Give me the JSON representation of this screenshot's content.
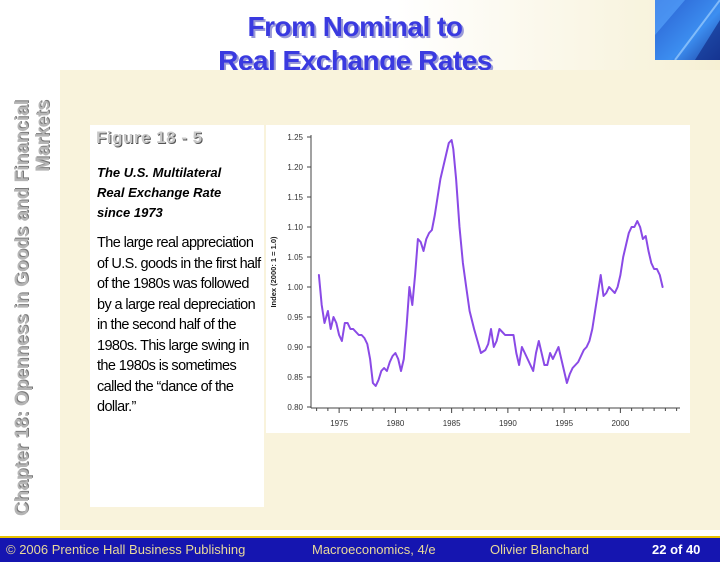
{
  "slide": {
    "title_line1": "From Nominal to",
    "title_line2": "Real Exchange Rates",
    "side_title": "Chapter 18: Openness in Goods and Financial Markets"
  },
  "figure": {
    "label": "Figure 18 - 5",
    "subtitle_lines": [
      "The U.S. Multilateral",
      "Real Exchange Rate",
      "since 1973"
    ],
    "description": "The large real appreciation of U.S. goods in the first half of the 1980s was followed by a large real depreciation in the second half of the 1980s.  This large swing in the 1980s is sometimes called the “dance of the dollar.”"
  },
  "footer": {
    "copyright": "© 2006 Prentice Hall Business Publishing",
    "book": "Macroeconomics, 4/e",
    "author": "Olivier Blanchard",
    "page": "22 of 40"
  },
  "colors": {
    "title": "#3a3ae0",
    "line": "#8a4ae6",
    "footer_bg": "#1515b0"
  },
  "chart_data": {
    "type": "line",
    "title": "",
    "xlabel": "",
    "ylabel": "Index (2000: 1 = 1.0)",
    "xlim": [
      1972.5,
      2005.3
    ],
    "ylim": [
      0.8,
      1.25
    ],
    "xticks": [
      1975,
      1980,
      1985,
      1990,
      1995,
      2000
    ],
    "yticks": [
      0.8,
      0.85,
      0.9,
      0.95,
      1.0,
      1.05,
      1.1,
      1.15,
      1.2,
      1.25
    ],
    "ytick_labels": [
      "0.80",
      "0.85",
      "0.90",
      "0.95",
      "1.00",
      "1.05",
      "1.10",
      "1.15",
      "1.20",
      "1.25"
    ],
    "grid": false,
    "series": [
      {
        "x": [
          1973.2,
          1973.45,
          1973.7,
          1974.0,
          1974.25,
          1974.5,
          1974.75,
          1975.0,
          1975.25,
          1975.5,
          1975.75,
          1976.0,
          1976.25,
          1976.5,
          1976.75,
          1977.0,
          1977.25,
          1977.5,
          1977.75,
          1978.0,
          1978.25,
          1978.5,
          1978.75,
          1979.0,
          1979.25,
          1979.5,
          1979.75,
          1980.0,
          1980.25,
          1980.5,
          1980.75,
          1981.0,
          1981.25,
          1981.5,
          1981.75,
          1982.0,
          1982.25,
          1982.5,
          1982.75,
          1983.0,
          1983.25,
          1983.5,
          1983.75,
          1984.0,
          1984.25,
          1984.5,
          1984.75,
          1985.0,
          1985.15,
          1985.4,
          1985.7,
          1986.0,
          1986.3,
          1986.6,
          1987.0,
          1987.3,
          1987.6,
          1988.0,
          1988.25,
          1988.5,
          1988.75,
          1989.0,
          1989.25,
          1989.5,
          1989.75,
          1990.0,
          1990.25,
          1990.5,
          1990.75,
          1991.0,
          1991.25,
          1991.5,
          1991.75,
          1992.0,
          1992.25,
          1992.5,
          1992.75,
          1993.0,
          1993.25,
          1993.5,
          1993.75,
          1994.0,
          1994.25,
          1994.5,
          1994.75,
          1995.0,
          1995.25,
          1995.5,
          1995.75,
          1996.0,
          1996.25,
          1996.5,
          1996.75,
          1997.0,
          1997.25,
          1997.5,
          1997.75,
          1998.0,
          1998.25,
          1998.5,
          1998.75,
          1999.0,
          1999.25,
          1999.5,
          1999.75,
          2000.0,
          2000.25,
          2000.5,
          2000.75,
          2001.0,
          2001.25,
          2001.5,
          2001.75,
          2002.0,
          2002.25,
          2002.5,
          2002.75,
          2003.0,
          2003.25,
          2003.5,
          2003.75
        ],
        "y": [
          1.02,
          0.97,
          0.94,
          0.96,
          0.93,
          0.95,
          0.94,
          0.92,
          0.91,
          0.94,
          0.94,
          0.93,
          0.93,
          0.925,
          0.92,
          0.92,
          0.915,
          0.905,
          0.88,
          0.84,
          0.835,
          0.845,
          0.86,
          0.865,
          0.86,
          0.875,
          0.885,
          0.89,
          0.88,
          0.86,
          0.88,
          0.935,
          1.0,
          0.97,
          1.02,
          1.08,
          1.075,
          1.06,
          1.08,
          1.09,
          1.095,
          1.12,
          1.15,
          1.18,
          1.2,
          1.22,
          1.24,
          1.245,
          1.23,
          1.18,
          1.1,
          1.04,
          1.0,
          0.96,
          0.93,
          0.91,
          0.89,
          0.895,
          0.905,
          0.93,
          0.9,
          0.91,
          0.93,
          0.925,
          0.92,
          0.92,
          0.92,
          0.92,
          0.89,
          0.87,
          0.9,
          0.89,
          0.88,
          0.87,
          0.86,
          0.89,
          0.91,
          0.89,
          0.87,
          0.87,
          0.89,
          0.88,
          0.89,
          0.9,
          0.88,
          0.86,
          0.84,
          0.855,
          0.865,
          0.87,
          0.875,
          0.885,
          0.895,
          0.9,
          0.91,
          0.93,
          0.96,
          0.99,
          1.02,
          0.985,
          0.99,
          1.0,
          0.995,
          0.99,
          1.0,
          1.02,
          1.05,
          1.07,
          1.09,
          1.1,
          1.1,
          1.11,
          1.1,
          1.08,
          1.085,
          1.06,
          1.04,
          1.03,
          1.03,
          1.02,
          1.0
        ]
      }
    ]
  }
}
